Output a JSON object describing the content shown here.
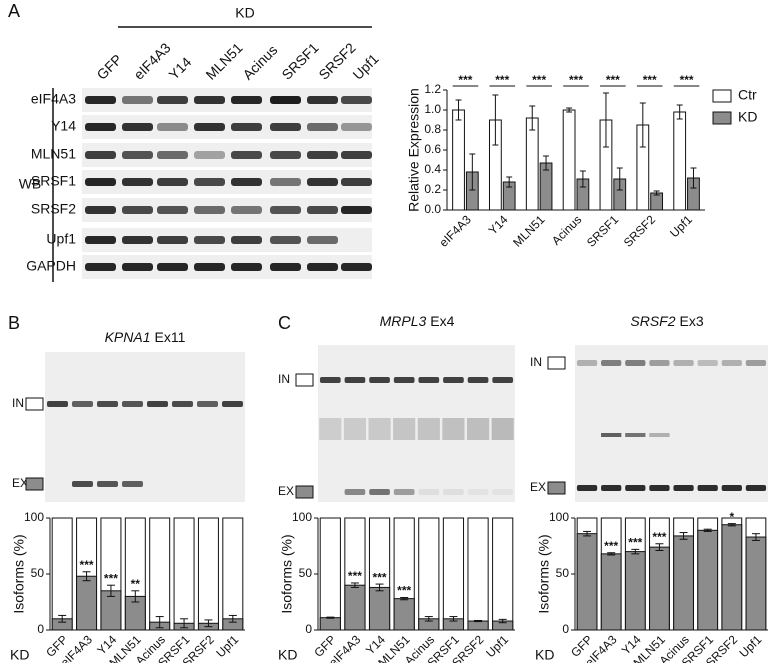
{
  "figure": {
    "panel_a": "A",
    "panel_b": "B",
    "panel_c": "C",
    "wb_header": "KD",
    "wb_lanes": [
      "GFP",
      "eIF4A3",
      "Y14",
      "MLN51",
      "Acinus",
      "SRSF1",
      "SRSF2",
      "Upf1"
    ],
    "wb_rows": [
      "eIF4A3",
      "Y14",
      "MLN51",
      "SRSF1",
      "SRSF2",
      "Upf1",
      "GAPDH"
    ],
    "wb_label": "WB",
    "gels": [
      {
        "gene": "KPNA1",
        "exon": "Ex11",
        "in_label": "IN",
        "ex_label": "EX"
      },
      {
        "gene": "MRPL3",
        "exon": "Ex4",
        "in_label": "IN",
        "ex_label": "EX"
      },
      {
        "gene": "SRSF2",
        "exon": "Ex3",
        "in_label": "IN",
        "ex_label": "EX"
      }
    ]
  },
  "chart_data": [
    {
      "type": "bar",
      "ylabel": "Relative Expression",
      "categories": [
        "eIF4A3",
        "Y14",
        "MLN51",
        "Acinus",
        "SRSF1",
        "SRSF2",
        "Upf1"
      ],
      "series": [
        {
          "name": "Ctr",
          "color": "#ffffff",
          "values": [
            1.0,
            0.9,
            0.92,
            1.0,
            0.9,
            0.85,
            0.98
          ],
          "errors": [
            0.1,
            0.25,
            0.12,
            0.02,
            0.27,
            0.22,
            0.07
          ]
        },
        {
          "name": "KD",
          "color": "#8c8c8c",
          "values": [
            0.38,
            0.28,
            0.47,
            0.31,
            0.31,
            0.17,
            0.32
          ],
          "errors": [
            0.18,
            0.05,
            0.07,
            0.08,
            0.11,
            0.02,
            0.1
          ]
        }
      ],
      "annotations": [
        "***",
        "***",
        "***",
        "***",
        "***",
        "***",
        "***"
      ],
      "ylim": [
        0,
        1.2
      ],
      "yticks": [
        {
          "value": 0,
          "label": "0.0"
        },
        {
          "value": 0.2,
          "label": "0.2"
        },
        {
          "value": 0.4,
          "label": "0.4"
        },
        {
          "value": 0.6,
          "label": "0.6"
        },
        {
          "value": 0.8,
          "label": "0.8"
        },
        {
          "value": 1.0,
          "label": "1.0"
        },
        {
          "value": 1.2,
          "label": "1.2"
        }
      ],
      "legend": "upper right"
    },
    {
      "type": "stacked_percent",
      "ylabel": "Isoforms (%)",
      "xlabel": "KD",
      "categories": [
        "GFP",
        "eIF4A3",
        "Y14",
        "MLN51",
        "Acinus",
        "SRSF1",
        "SRSF2",
        "Upf1"
      ],
      "values": [
        10,
        48,
        35,
        30,
        7,
        6,
        6,
        10
      ],
      "errors": [
        3,
        4,
        5,
        5,
        5,
        4,
        3,
        3
      ],
      "annotations": [
        null,
        "***",
        "***",
        "**",
        null,
        null,
        null,
        null
      ],
      "color": "#8c8c8c",
      "ylim": [
        0,
        100
      ],
      "yticks": [
        0,
        50,
        100
      ]
    },
    {
      "type": "stacked_percent",
      "ylabel": "Isoforms (%)",
      "xlabel": "KD",
      "categories": [
        "GFP",
        "eIF4A3",
        "Y14",
        "MLN51",
        "Acinus",
        "SRSF1",
        "SRSF2",
        "Upf1"
      ],
      "values": [
        11,
        40,
        38,
        28,
        10,
        10,
        8,
        8
      ],
      "errors": [
        0.5,
        2,
        3,
        1,
        2,
        2,
        0.5,
        1.5
      ],
      "annotations": [
        null,
        "***",
        "***",
        "***",
        null,
        null,
        null,
        null
      ],
      "color": "#8c8c8c",
      "ylim": [
        0,
        100
      ],
      "yticks": [
        0,
        50,
        100
      ]
    },
    {
      "type": "stacked_percent",
      "ylabel": "Isoforms (%)",
      "xlabel": "KD",
      "categories": [
        "GFP",
        "eIF4A3",
        "Y14",
        "MLN51",
        "Acinus",
        "SRSF1",
        "SRSF2",
        "Upf1"
      ],
      "values": [
        86,
        68,
        70,
        74,
        84,
        89,
        94,
        83
      ],
      "errors": [
        2,
        1,
        2,
        3,
        3,
        1,
        1,
        3
      ],
      "annotations": [
        null,
        "***",
        "***",
        "***",
        null,
        null,
        "*",
        null
      ],
      "color": "#8c8c8c",
      "ylim": [
        0,
        100
      ],
      "yticks": [
        0,
        50,
        100
      ]
    }
  ]
}
